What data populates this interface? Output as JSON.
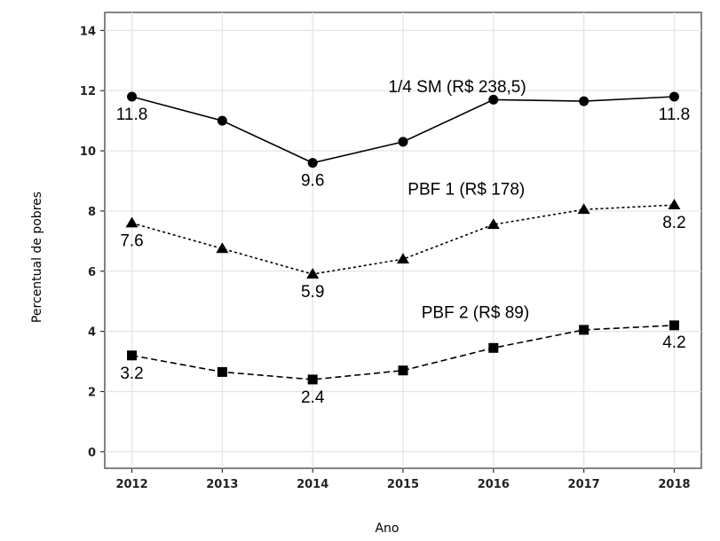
{
  "chart_data": {
    "type": "line",
    "title": "",
    "xlabel": "Ano",
    "ylabel": "Percentual de pobres",
    "x": [
      2012,
      2013,
      2014,
      2015,
      2016,
      2017,
      2018
    ],
    "x_tick_labels": [
      "2012",
      "2013",
      "2014",
      "2015",
      "2016",
      "2017",
      "2018"
    ],
    "ylim": [
      0,
      14
    ],
    "y_ticks": [
      0,
      2,
      4,
      6,
      8,
      10,
      12,
      14
    ],
    "y_tick_labels": [
      "0",
      "2",
      "4",
      "6",
      "8",
      "10",
      "12",
      "14"
    ],
    "grid": true,
    "series": [
      {
        "name": "1/4 SM (R$ 238,5)",
        "line_style": "solid",
        "marker": "circle",
        "values": [
          11.8,
          11.0,
          9.6,
          10.3,
          11.7,
          11.65,
          11.8
        ],
        "data_labels": [
          {
            "x": 2012,
            "text": "11.8"
          },
          {
            "x": 2014,
            "text": "9.6"
          },
          {
            "x": 2018,
            "text": "11.8"
          }
        ]
      },
      {
        "name": "PBF 1 (R$ 178)",
        "line_style": "dotted",
        "marker": "triangle",
        "values": [
          7.6,
          6.75,
          5.9,
          6.4,
          7.55,
          8.05,
          8.2
        ],
        "data_labels": [
          {
            "x": 2012,
            "text": "7.6"
          },
          {
            "x": 2014,
            "text": "5.9"
          },
          {
            "x": 2018,
            "text": "8.2"
          }
        ]
      },
      {
        "name": "PBF 2 (R$ 89)",
        "line_style": "dashed",
        "marker": "square",
        "values": [
          3.2,
          2.65,
          2.4,
          2.7,
          3.45,
          4.05,
          4.2
        ],
        "data_labels": [
          {
            "x": 2012,
            "text": "3.2"
          },
          {
            "x": 2014,
            "text": "2.4"
          },
          {
            "x": 2018,
            "text": "4.2"
          }
        ]
      }
    ]
  }
}
